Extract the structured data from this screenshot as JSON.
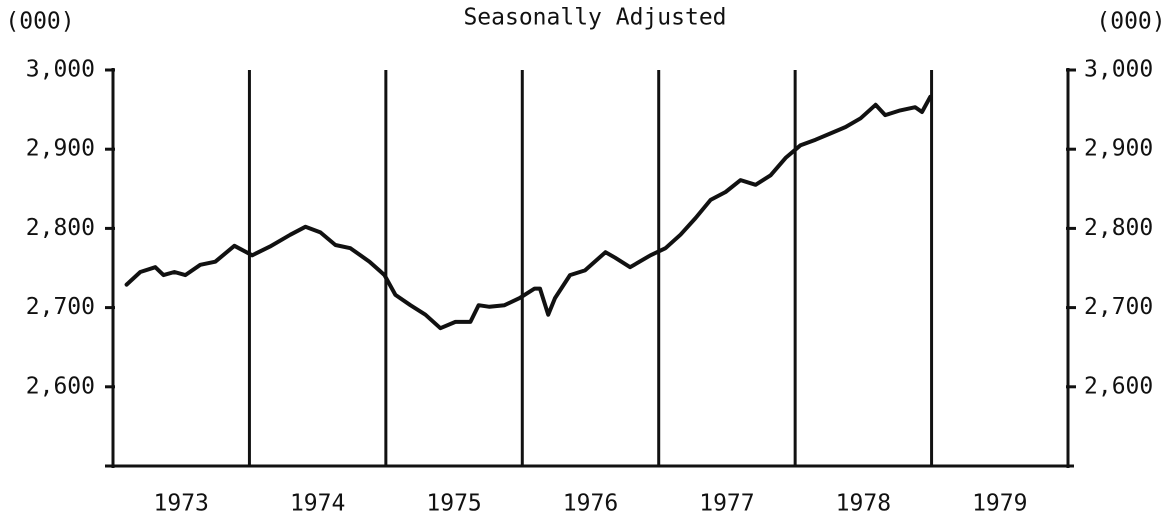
{
  "chart_data": {
    "type": "line",
    "title": "Seasonally Adjusted",
    "ylabel": "(000)",
    "y2label": "(000)",
    "xlim": [
      1973,
      1980
    ],
    "xticks": [
      {
        "value": 1973.5,
        "label": "1973"
      },
      {
        "value": 1974.5,
        "label": "1974"
      },
      {
        "value": 1975.5,
        "label": "1975"
      },
      {
        "value": 1976.5,
        "label": "1976"
      },
      {
        "value": 1977.5,
        "label": "1977"
      },
      {
        "value": 1978.5,
        "label": "1978"
      },
      {
        "value": 1979.5,
        "label": "1979"
      }
    ],
    "xgrid": [
      1974,
      1975,
      1976,
      1977,
      1978,
      1979
    ],
    "ylim": [
      2500,
      3000
    ],
    "yticks": [
      {
        "value": 2600,
        "label": "2,600"
      },
      {
        "value": 2700,
        "label": "2,700"
      },
      {
        "value": 2800,
        "label": "2,800"
      },
      {
        "value": 2900,
        "label": "2,900"
      },
      {
        "value": 3000,
        "label": "3,000"
      }
    ],
    "y2lim": [
      2500,
      3000
    ],
    "y2ticks": [
      {
        "value": 2600,
        "label": "2,600"
      },
      {
        "value": 2700,
        "label": "2,700"
      },
      {
        "value": 2800,
        "label": "2,800"
      },
      {
        "value": 2900,
        "label": "2,900"
      },
      {
        "value": 3000,
        "label": "3,000"
      }
    ],
    "color": "#111111",
    "x": [
      1973.1,
      1973.2,
      1973.31,
      1973.37,
      1973.45,
      1973.53,
      1973.64,
      1973.75,
      1973.89,
      1974.02,
      1974.15,
      1974.3,
      1974.41,
      1974.52,
      1974.63,
      1974.74,
      1974.88,
      1974.99,
      1975.07,
      1975.18,
      1975.29,
      1975.4,
      1975.51,
      1975.62,
      1975.68,
      1975.76,
      1975.87,
      1975.98,
      1976.09,
      1976.13,
      1976.19,
      1976.24,
      1976.35,
      1976.46,
      1976.61,
      1976.68,
      1976.79,
      1976.94,
      1977.05,
      1977.16,
      1977.27,
      1977.38,
      1977.49,
      1977.6,
      1977.71,
      1977.82,
      1977.93,
      1978.04,
      1978.15,
      1978.26,
      1978.37,
      1978.48,
      1978.59,
      1978.66,
      1978.77,
      1978.88,
      1978.93,
      1978.99
    ],
    "values": [
      2729,
      2745,
      2751,
      2741,
      2745,
      2741,
      2754,
      2758,
      2778,
      2766,
      2777,
      2792,
      2802,
      2795,
      2779,
      2775,
      2758,
      2741,
      2716,
      2703,
      2691,
      2674,
      2682,
      2682,
      2703,
      2701,
      2703,
      2712,
      2724,
      2724,
      2691,
      2712,
      2741,
      2747,
      2770,
      2763,
      2751,
      2766,
      2775,
      2792,
      2813,
      2836,
      2846,
      2861,
      2855,
      2867,
      2889,
      2905,
      2912,
      2920,
      2928,
      2939,
      2956,
      2943,
      2949,
      2953,
      2947,
      2966
    ]
  }
}
